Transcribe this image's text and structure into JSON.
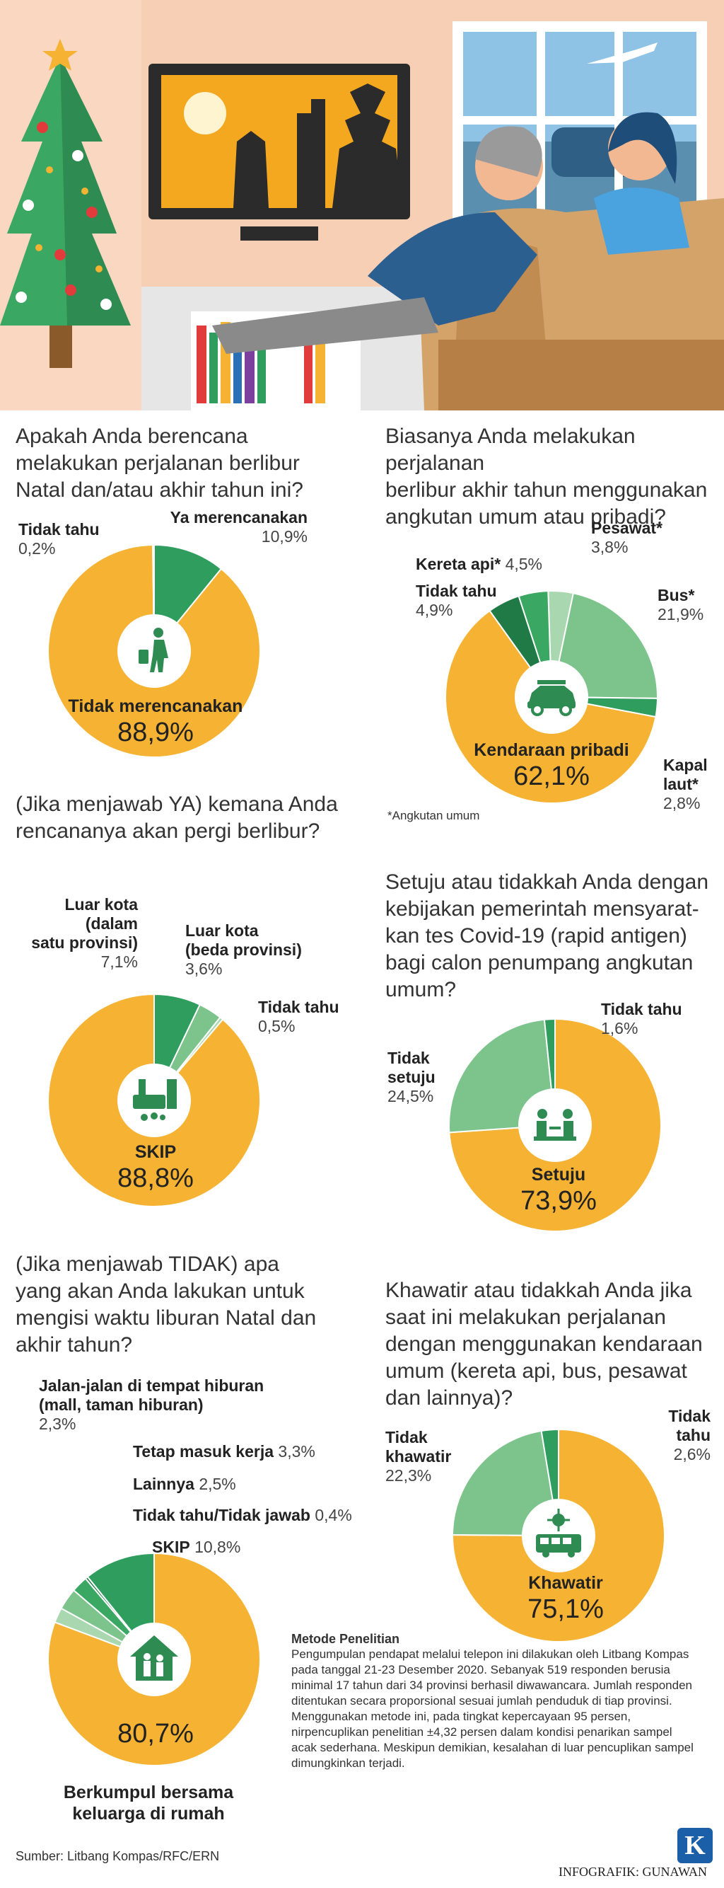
{
  "colors": {
    "orange": "#f6b233",
    "green_dark": "#2e9d5e",
    "green_mid": "#3aa862",
    "green_light": "#7cc38c",
    "green_pale": "#a9d8b0",
    "green_deep": "#1f7a45",
    "white": "#ffffff"
  },
  "q1": {
    "question": [
      "Apakah Anda berencana",
      "melakukan perjalanan berlibur",
      "Natal dan/atau akhir tahun ini?"
    ],
    "icon": "traveler-icon"
  },
  "q2": {
    "question": [
      "Biasanya Anda melakukan perjalanan",
      "berlibur akhir tahun menggunakan",
      "angkutan umum atau pribadi?"
    ],
    "icon": "car-icon",
    "footnote": "*Angkutan umum"
  },
  "q3": {
    "question": [
      "(Jika menjawab YA) kemana Anda",
      "rencananya akan pergi berlibur?"
    ],
    "icon": "city-family-icon"
  },
  "q4": {
    "question": [
      "Setuju atau tidakkah Anda dengan",
      "kebijakan pemerintah mensyarat-",
      "kan tes Covid-19 (rapid antigen)",
      "bagi calon penumpang angkutan",
      "umum?"
    ],
    "icon": "covid-test-icon"
  },
  "q5": {
    "question": [
      "(Jika menjawab TIDAK)  apa",
      "yang akan Anda lakukan untuk",
      "mengisi waktu liburan Natal dan",
      "akhir tahun?"
    ],
    "icon": "family-home-icon"
  },
  "q6": {
    "question": [
      "Khawatir atau tidakkah Anda jika",
      "saat ini melakukan perjalanan",
      "dengan menggunakan kendaraan",
      "umum (kereta api, bus, pesawat",
      "dan lainnya)?"
    ],
    "icon": "virus-bus-icon"
  },
  "chart_data": [
    {
      "type": "pie",
      "id": "q1",
      "slices": [
        {
          "label": "Ya merencanakan",
          "value": 10.9,
          "text": "10,9%",
          "color": "#2e9d5e"
        },
        {
          "label": "Tidak merencanakan",
          "value": 88.9,
          "text": "88,9%",
          "color": "#f6b233"
        },
        {
          "label": "Tidak tahu",
          "value": 0.2,
          "text": "0,2%",
          "color": "#a9d8b0"
        }
      ]
    },
    {
      "type": "pie",
      "id": "q2",
      "slices": [
        {
          "label": "Pesawat*",
          "value": 3.8,
          "text": "3,8%",
          "color": "#a9d8b0"
        },
        {
          "label": "Bus*",
          "value": 21.9,
          "text": "21,9%",
          "color": "#7cc38c"
        },
        {
          "label": "Kapal laut*",
          "value": 2.8,
          "text": "2,8%",
          "color": "#2e9d5e"
        },
        {
          "label": "Kendaraan pribadi",
          "value": 62.1,
          "text": "62,1%",
          "color": "#f6b233"
        },
        {
          "label": "Tidak tahu",
          "value": 4.9,
          "text": "4,9%",
          "color": "#1f7a45"
        },
        {
          "label": "Kereta api*",
          "value": 4.5,
          "text": "4,5%",
          "color": "#3aa862"
        }
      ]
    },
    {
      "type": "pie",
      "id": "q3",
      "slices": [
        {
          "label": "Luar kota (dalam satu provinsi)",
          "value": 7.1,
          "text": "7,1%",
          "color": "#2e9d5e"
        },
        {
          "label": "Luar kota (beda provinsi)",
          "value": 3.6,
          "text": "3,6%",
          "color": "#7cc38c"
        },
        {
          "label": "Tidak tahu",
          "value": 0.5,
          "text": "0,5%",
          "color": "#a9d8b0"
        },
        {
          "label": "SKIP",
          "value": 88.8,
          "text": "88,8%",
          "color": "#f6b233"
        }
      ]
    },
    {
      "type": "pie",
      "id": "q4",
      "slices": [
        {
          "label": "Setuju",
          "value": 73.9,
          "text": "73,9%",
          "color": "#f6b233"
        },
        {
          "label": "Tidak setuju",
          "value": 24.5,
          "text": "24,5%",
          "color": "#7cc38c"
        },
        {
          "label": "Tidak tahu",
          "value": 1.6,
          "text": "1,6%",
          "color": "#2e9d5e"
        }
      ]
    },
    {
      "type": "pie",
      "id": "q5",
      "slices": [
        {
          "label": "Berkumpul bersama keluarga di rumah",
          "value": 80.7,
          "text": "80,7%",
          "color": "#f6b233"
        },
        {
          "label": "Jalan-jalan di tempat hiburan (mall, taman hiburan)",
          "value": 2.3,
          "text": "2,3%",
          "color": "#a9d8b0"
        },
        {
          "label": "Tetap masuk kerja",
          "value": 3.3,
          "text": "3,3%",
          "color": "#7cc38c"
        },
        {
          "label": "Lainnya",
          "value": 2.5,
          "text": "2,5%",
          "color": "#3aa862"
        },
        {
          "label": "Tidak tahu/Tidak jawab",
          "value": 0.4,
          "text": "0,4%",
          "color": "#1f7a45"
        },
        {
          "label": "SKIP",
          "value": 10.8,
          "text": "10,8%",
          "color": "#2e9d5e"
        }
      ]
    },
    {
      "type": "pie",
      "id": "q6",
      "slices": [
        {
          "label": "Khawatir",
          "value": 75.1,
          "text": "75,1%",
          "color": "#f6b233"
        },
        {
          "label": "Tidak khawatir",
          "value": 22.3,
          "text": "22,3%",
          "color": "#7cc38c"
        },
        {
          "label": "Tidak tahu",
          "value": 2.6,
          "text": "2,6%",
          "color": "#2e9d5e"
        }
      ]
    }
  ],
  "labels": {
    "q1_tidak_tahu": "Tidak tahu",
    "q1_tidak_tahu_pct": "0,2%",
    "q1_ya": "Ya merencanakan",
    "q1_ya_pct": "10,9%",
    "q1_tidak": "Tidak merencanakan",
    "q1_tidak_pct": "88,9%",
    "q2_pesawat": "Pesawat*",
    "q2_pesawat_pct": "3,8%",
    "q2_kereta": "Kereta api*",
    "q2_kereta_pct": "4,5%",
    "q2_tidak_tahu": "Tidak tahu",
    "q2_tidak_tahu_pct": "4,9%",
    "q2_bus": "Bus*",
    "q2_bus_pct": "21,9%",
    "q2_kapal1": "Kapal",
    "q2_kapal2": "laut*",
    "q2_kapal_pct": "2,8%",
    "q2_pribadi": "Kendaraan pribadi",
    "q2_pribadi_pct": "62,1%",
    "q3_dalam1": "Luar kota",
    "q3_dalam2": "(dalam",
    "q3_dalam3": "satu provinsi)",
    "q3_dalam_pct": "7,1%",
    "q3_beda1": "Luar kota",
    "q3_beda2": "(beda provinsi)",
    "q3_beda_pct": "3,6%",
    "q3_tidak_tahu": "Tidak tahu",
    "q3_tidak_tahu_pct": "0,5%",
    "q3_skip": "SKIP",
    "q3_skip_pct": "88,8%",
    "q4_tidak_tahu": "Tidak tahu",
    "q4_tidak_tahu_pct": "1,6%",
    "q4_tidak1": "Tidak",
    "q4_tidak2": "setuju",
    "q4_tidak_pct": "24,5%",
    "q4_setuju": "Setuju",
    "q4_setuju_pct": "73,9%",
    "q5_jalan1": "Jalan-jalan di tempat hiburan",
    "q5_jalan2": "(mall, taman hiburan)",
    "q5_jalan_pct": "2,3%",
    "q5_kerja": "Tetap masuk kerja",
    "q5_kerja_pct": "3,3%",
    "q5_lainnya": "Lainnya",
    "q5_lainnya_pct": "2,5%",
    "q5_tt": "Tidak tahu/Tidak jawab",
    "q5_tt_pct": "0,4%",
    "q5_skip": "SKIP",
    "q5_skip_pct": "10,8%",
    "q5_kumpul_pct": "80,7%",
    "q5_kumpul1": "Berkumpul bersama",
    "q5_kumpul2": "keluarga di rumah",
    "q6_tidak1": "Tidak",
    "q6_tidak2": "khawatir",
    "q6_tidak_pct": "22,3%",
    "q6_tt1": "Tidak",
    "q6_tt2": "tahu",
    "q6_tt_pct": "2,6%",
    "q6_khawatir": "Khawatir",
    "q6_khawatir_pct": "75,1%"
  },
  "method": {
    "title": "Metode Penelitian",
    "lines": [
      "Pengumpulan pendapat melalui telepon ini dilakukan oleh Litbang Kompas",
      "pada tanggal 21-23 Desember 2020. Sebanyak 519 responden berusia",
      "minimal 17 tahun dari 34 provinsi berhasil diwawancara. Jumlah responden",
      "ditentukan secara proporsional sesuai jumlah penduduk di tiap provinsi.",
      "Menggunakan metode ini, pada tingkat kepercayaan 95 persen,",
      "nirpencuplikan penelitian ±4,32 persen dalam kondisi penarikan sampel",
      "acak sederhana. Meskipun demikian, kesalahan di luar pencuplikan sampel",
      "dimungkinkan terjadi."
    ]
  },
  "footer": {
    "source": "Sumber: Litbang Kompas/RFC/ERN",
    "credit": "INFOGRAFIK: GUNAWAN",
    "logo": "K"
  }
}
